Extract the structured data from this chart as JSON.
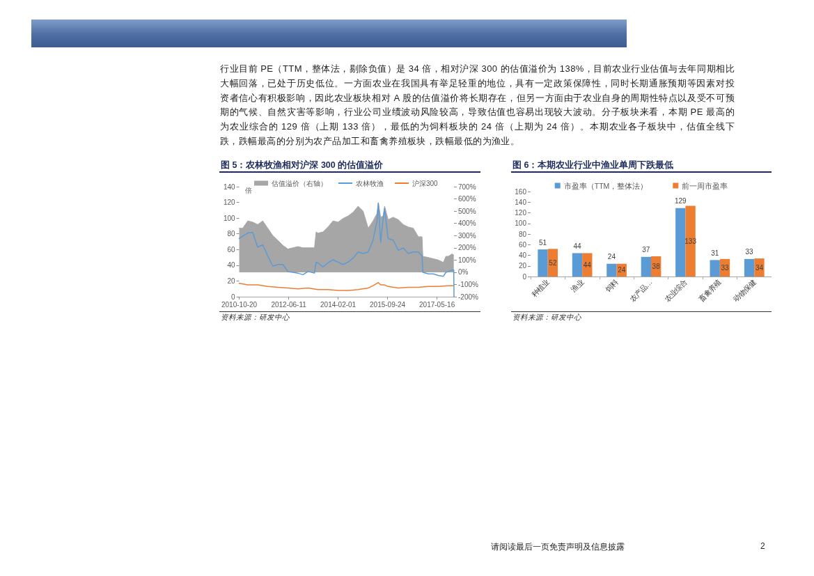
{
  "chart_data": [
    {
      "type": "other",
      "annotations": [
        "行业目前 PE（TTM，整体法，剔除负值）是 34 倍，相对沪深 300 的估值溢价为 138%，目前农业行业估值与去年同期相比大幅回落，已处于历史低位。一方面农业在我国具有举足轻重的地位，具有一定政策保障性，同时长期通胀预期等因素对投资者信心有积极影响，因此农业板块相对 A 股的估值溢价将长期存在，但另一方面由于农业自身的周期性特点以及受不可预期的气候、自然灾害等影响，行业公司业绩波动风险较高，导致估值也容易出现较大波动。分子板块来看，本期 PE 最高的为农业综合的 129 倍（上期 133 倍），最低的为饲料板块的 24 倍（上期为 24 倍）。本期农业各子板块中，估值全线下跌，跌幅最高的分别为农产品加工和畜禽养殖板块，跌幅最低的为渔业。",
        "请阅读最后一页免责声明及信息披露",
        "2"
      ]
    },
    {
      "type": "line",
      "title": "图 5：农林牧渔相对沪深 300 的估值溢价",
      "ylabel": "倍",
      "x": [
        "2010-10-20",
        "2010-12-01",
        "2011-02-01",
        "2011-04-01",
        "2011-06-01",
        "2011-08-01",
        "2011-10-01",
        "2011-12-01",
        "2012-02-01",
        "2012-04-01",
        "2012-06-01",
        "2012-08-01",
        "2012-10-01",
        "2012-12-01",
        "2013-02-01",
        "2013-04-20",
        "2013-05-10",
        "2013-06-01",
        "2013-08-01",
        "2013-10-01",
        "2013-12-01",
        "2014-02-01",
        "2014-04-01",
        "2014-06-01",
        "2014-08-01",
        "2014-10-01",
        "2014-12-01",
        "2015-02-01",
        "2015-04-01",
        "2015-05-18",
        "2015-06-04",
        "2015-07-02",
        "2015-08-01",
        "2015-08-19",
        "2015-10-01",
        "2015-12-01",
        "2016-02-01",
        "2016-04-01",
        "2016-06-01",
        "2016-08-01",
        "2016-10-01",
        "2016-11-15",
        "2016-11-25",
        "2017-02-01",
        "2017-04-01",
        "2017-06-01",
        "2017-08-01",
        "2017-09-01",
        "2017-10-01",
        "2017-11-15",
        "2017-12-05",
        "2017-12-08"
      ],
      "series": [
        {
          "name": "估值溢价（右轴）",
          "type": "area",
          "axis": "y2",
          "color": "#a6a6a6",
          "values": [
            360,
            360,
            420,
            410,
            390,
            420,
            360,
            300,
            260,
            220,
            190,
            200,
            210,
            200,
            200,
            200,
            330,
            320,
            330,
            370,
            420,
            410,
            440,
            460,
            490,
            540,
            500,
            360,
            420,
            480,
            570,
            450,
            460,
            540,
            430,
            450,
            430,
            390,
            370,
            360,
            290,
            290,
            130,
            120,
            110,
            100,
            80,
            130,
            130,
            150,
            140,
            null
          ]
        },
        {
          "name": "农林牧渔",
          "color": "#5b9bd5",
          "values": [
            74,
            77,
            81,
            82,
            63,
            66,
            52,
            39,
            41,
            41,
            32,
            31,
            30,
            28,
            32,
            30,
            44,
            43,
            38,
            43,
            47,
            44,
            41,
            44,
            49,
            57,
            55,
            57,
            72,
            96,
            119,
            69,
            99,
            112,
            74,
            72,
            59,
            62,
            55,
            57,
            57,
            52,
            31,
            29,
            29,
            27,
            26,
            31,
            32,
            34,
            34,
            0
          ]
        },
        {
          "name": "沪深300",
          "color": "#ed7d31",
          "x": [
            "2010-10-20",
            "2011-02-01",
            "2011-06-01",
            "2011-10-01",
            "2012-02-01",
            "2012-06-01",
            "2012-10-01",
            "2013-02-01",
            "2013-06-01",
            "2013-10-01",
            "2014-02-01",
            "2014-06-01",
            "2014-10-01",
            "2015-02-01",
            "2015-04-01",
            "2015-06-04",
            "2015-07-02",
            "2015-08-19",
            "2015-10-01",
            "2016-02-01",
            "2016-06-01",
            "2016-10-01",
            "2017-02-01",
            "2017-06-01",
            "2017-10-01",
            "2017-12-05"
          ],
          "values": [
            17,
            15,
            15,
            13,
            12,
            11,
            10,
            11,
            9,
            9,
            8,
            8,
            9,
            11,
            14,
            18,
            15,
            15,
            13,
            11,
            12,
            12,
            13,
            13,
            14,
            14
          ]
        }
      ],
      "xlim": [
        "2010-10-20",
        "2017-12-08"
      ],
      "xticks": [
        "2010-10-20",
        "2012-06-11",
        "2014-02-01",
        "2015-09-24",
        "2017-05-16"
      ],
      "ylim": [
        0,
        140
      ],
      "yticks": [
        0,
        20,
        40,
        60,
        80,
        100,
        120,
        140
      ],
      "y2lim": [
        -200,
        700
      ],
      "y2ticks": [
        {
          "value": -200,
          "label": "-200%"
        },
        {
          "value": -100,
          "label": "-100%"
        },
        {
          "value": 0,
          "label": "0%"
        },
        {
          "value": 100,
          "label": "100%"
        },
        {
          "value": 200,
          "label": "200%"
        },
        {
          "value": 300,
          "label": "300%"
        },
        {
          "value": 400,
          "label": "400%"
        },
        {
          "value": 500,
          "label": "500%"
        },
        {
          "value": 600,
          "label": "600%"
        },
        {
          "value": 700,
          "label": "700%"
        }
      ],
      "marker": "none",
      "legend": "top",
      "annotations": [
        "资料来源：研发中心"
      ]
    },
    {
      "type": "bar",
      "title": "图 6：本期农业行业中渔业单周下跌最低",
      "categories": [
        "种植业",
        "渔业",
        "饲料",
        "农产品…",
        "农业综合",
        "畜禽养殖",
        "动物保健"
      ],
      "series": [
        {
          "name": "市盈率（TTM，整体法）",
          "color": "#5b9bd5",
          "values": [
            51,
            44,
            24,
            37,
            129,
            31,
            33
          ]
        },
        {
          "name": "前一周市盈率",
          "color": "#ed7d31",
          "values": [
            52,
            44,
            24,
            38,
            133,
            33,
            34
          ]
        }
      ],
      "ylim": [
        0,
        160
      ],
      "yticks": [
        0,
        20,
        40,
        60,
        80,
        100,
        120,
        140,
        160
      ],
      "data_labels": true,
      "legend": "top",
      "annotations": [
        "资料来源：研发中心"
      ]
    }
  ]
}
